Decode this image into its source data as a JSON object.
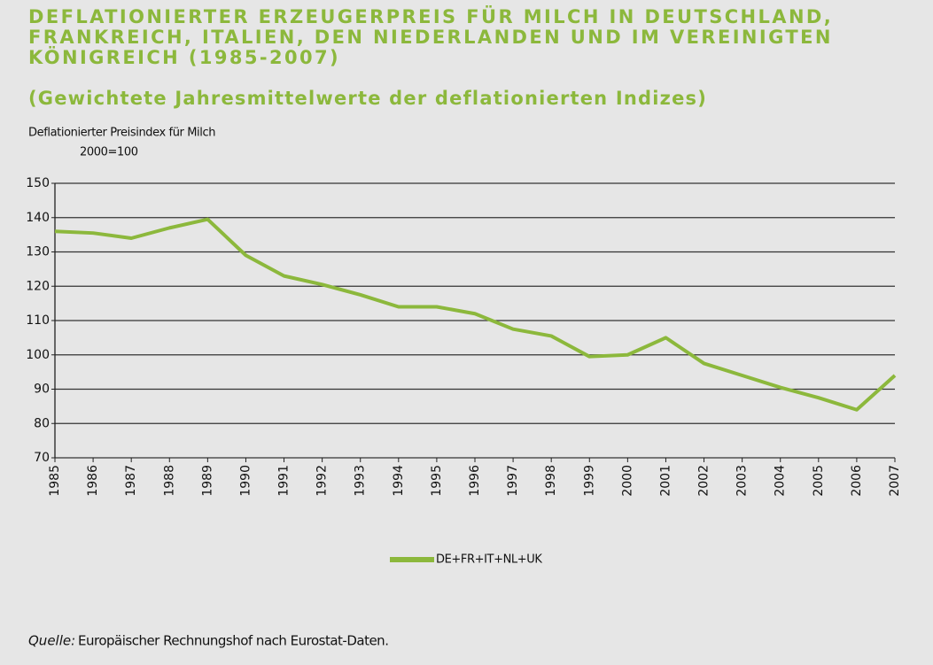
{
  "chart_data": {
    "type": "line",
    "title": [
      "DEFLATIONIERTER ERZEUGERPREIS FÜR MILCH IN DEUTSCHLAND,",
      "FRANKREICH, ITALIEN, DEN NIEDERLANDEN UND IM VEREINIGTEN",
      "KÖNIGREICH (1985-2007)"
    ],
    "subtitle": "(Gewichtete Jahresmittelwerte der deflationierten Indizes)",
    "y_label": "Deflationierter Preisindex für Milch",
    "y_unit": "2000=100",
    "categories": [
      "1985",
      "1986",
      "1987",
      "1988",
      "1989",
      "1990",
      "1991",
      "1992",
      "1993",
      "1994",
      "1995",
      "1996",
      "1997",
      "1998",
      "1999",
      "2000",
      "2001",
      "2002",
      "2003",
      "2004",
      "2005",
      "2006",
      "2007"
    ],
    "series": [
      {
        "name": "DE+FR+IT+NL+UK",
        "color": "#8cb83c",
        "values": [
          136,
          135.5,
          134,
          137,
          139.5,
          129,
          123,
          120.5,
          117.5,
          114,
          114,
          112,
          107.5,
          105.5,
          99.5,
          100,
          105,
          97.5,
          94,
          90.5,
          87.5,
          84,
          94
        ]
      }
    ],
    "ylim": [
      70,
      150
    ],
    "yticks": [
      70,
      80,
      90,
      100,
      110,
      120,
      130,
      140,
      150
    ],
    "grid": true,
    "legend": "bottom",
    "source_label": "Quelle:",
    "source": "Europäischer Rechnungshof nach Eurostat-Daten."
  }
}
